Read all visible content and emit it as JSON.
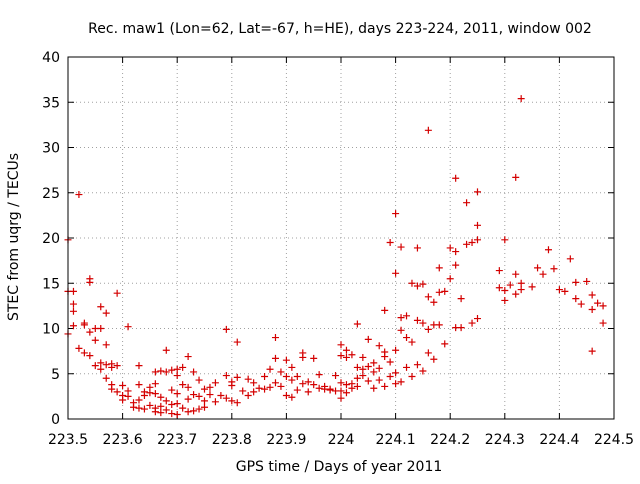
{
  "chart_data": {
    "type": "scatter",
    "title": "Rec. maw1 (Lon=62, Lat=-67, h=HE), days 223-224, 2011, window 002",
    "xlabel": "GPS time / Days of year 2011",
    "ylabel": "STEC from uqrg / TECUs",
    "xlim": [
      223.5,
      224.5
    ],
    "ylim": [
      0,
      40
    ],
    "xticks": [
      223.5,
      223.6,
      223.7,
      223.8,
      223.9,
      224.0,
      224.1,
      224.2,
      224.3,
      224.4,
      224.5
    ],
    "xtick_labels": [
      "223.5",
      "223.6",
      "223.7",
      "223.8",
      "223.9",
      "224",
      "224.1",
      "224.2",
      "224.3",
      "224.4",
      "224.5"
    ],
    "yticks": [
      0,
      5,
      10,
      15,
      20,
      25,
      30,
      35,
      40
    ],
    "ytick_labels": [
      "0",
      "5",
      "10",
      "15",
      "20",
      "25",
      "30",
      "35",
      "40"
    ],
    "grid": true,
    "marker": "+",
    "color": "#d40000",
    "series": [
      {
        "points": [
          [
            223.5,
            14.1
          ],
          [
            223.5,
            9.4
          ],
          [
            223.5,
            19.8
          ],
          [
            223.51,
            14.1
          ],
          [
            223.51,
            12.7
          ],
          [
            223.51,
            11.9
          ],
          [
            223.51,
            10.3
          ],
          [
            223.52,
            7.8
          ],
          [
            223.52,
            24.8
          ],
          [
            223.53,
            10.6
          ],
          [
            223.53,
            10.4
          ],
          [
            223.53,
            7.3
          ],
          [
            223.54,
            15.5
          ],
          [
            223.54,
            15.1
          ],
          [
            223.54,
            9.6
          ],
          [
            223.54,
            7.0
          ],
          [
            223.55,
            10.0
          ],
          [
            223.55,
            8.7
          ],
          [
            223.55,
            5.9
          ],
          [
            223.56,
            12.4
          ],
          [
            223.56,
            10.0
          ],
          [
            223.56,
            6.2
          ],
          [
            223.56,
            5.5
          ],
          [
            223.57,
            11.7
          ],
          [
            223.57,
            8.2
          ],
          [
            223.57,
            6.0
          ],
          [
            223.57,
            4.5
          ],
          [
            223.58,
            6.1
          ],
          [
            223.58,
            5.7
          ],
          [
            223.58,
            3.3
          ],
          [
            223.58,
            3.8
          ],
          [
            223.59,
            13.9
          ],
          [
            223.59,
            5.9
          ],
          [
            223.59,
            3.0
          ],
          [
            223.6,
            3.7
          ],
          [
            223.6,
            2.6
          ],
          [
            223.6,
            2.1
          ],
          [
            223.61,
            10.2
          ],
          [
            223.61,
            3.1
          ],
          [
            223.61,
            2.5
          ],
          [
            223.62,
            1.8
          ],
          [
            223.62,
            1.3
          ],
          [
            223.63,
            5.9
          ],
          [
            223.63,
            3.8
          ],
          [
            223.63,
            2.1
          ],
          [
            223.63,
            1.2
          ],
          [
            223.64,
            3.0
          ],
          [
            223.64,
            2.6
          ],
          [
            223.64,
            1.1
          ],
          [
            223.65,
            3.5
          ],
          [
            223.65,
            2.9
          ],
          [
            223.65,
            1.5
          ],
          [
            223.66,
            5.2
          ],
          [
            223.66,
            3.9
          ],
          [
            223.66,
            2.8
          ],
          [
            223.66,
            1.2
          ],
          [
            223.66,
            0.8
          ],
          [
            223.67,
            5.3
          ],
          [
            223.67,
            2.4
          ],
          [
            223.67,
            1.4
          ],
          [
            223.67,
            0.7
          ],
          [
            223.68,
            7.6
          ],
          [
            223.68,
            5.2
          ],
          [
            223.68,
            2.0
          ],
          [
            223.68,
            1.0
          ],
          [
            223.69,
            5.4
          ],
          [
            223.69,
            3.2
          ],
          [
            223.69,
            1.6
          ],
          [
            223.69,
            0.6
          ],
          [
            223.7,
            5.5
          ],
          [
            223.7,
            4.8
          ],
          [
            223.7,
            2.8
          ],
          [
            223.7,
            1.7
          ],
          [
            223.7,
            0.5
          ],
          [
            223.71,
            5.7
          ],
          [
            223.71,
            3.8
          ],
          [
            223.71,
            1.2
          ],
          [
            223.72,
            6.9
          ],
          [
            223.72,
            3.5
          ],
          [
            223.72,
            2.2
          ],
          [
            223.72,
            0.8
          ],
          [
            223.73,
            5.2
          ],
          [
            223.73,
            2.7
          ],
          [
            223.73,
            0.9
          ],
          [
            223.74,
            4.3
          ],
          [
            223.74,
            2.5
          ],
          [
            223.74,
            1.1
          ],
          [
            223.75,
            3.3
          ],
          [
            223.75,
            2.0
          ],
          [
            223.75,
            1.3
          ],
          [
            223.76,
            3.5
          ],
          [
            223.76,
            2.7
          ],
          [
            223.77,
            4.0
          ],
          [
            223.77,
            1.9
          ],
          [
            223.78,
            2.6
          ],
          [
            223.79,
            9.9
          ],
          [
            223.79,
            4.8
          ],
          [
            223.79,
            2.3
          ],
          [
            223.8,
            4.1
          ],
          [
            223.8,
            3.7
          ],
          [
            223.8,
            2.0
          ],
          [
            223.81,
            8.5
          ],
          [
            223.81,
            4.6
          ],
          [
            223.81,
            1.8
          ],
          [
            223.82,
            3.1
          ],
          [
            223.83,
            4.4
          ],
          [
            223.83,
            2.6
          ],
          [
            223.84,
            4.0
          ],
          [
            223.84,
            3.0
          ],
          [
            223.85,
            3.4
          ],
          [
            223.86,
            4.7
          ],
          [
            223.86,
            3.3
          ],
          [
            223.87,
            5.5
          ],
          [
            223.87,
            3.5
          ],
          [
            223.88,
            9.0
          ],
          [
            223.88,
            6.7
          ],
          [
            223.88,
            4.0
          ],
          [
            223.89,
            5.2
          ],
          [
            223.89,
            3.6
          ],
          [
            223.9,
            6.5
          ],
          [
            223.9,
            4.7
          ],
          [
            223.9,
            2.6
          ],
          [
            223.91,
            5.7
          ],
          [
            223.91,
            4.3
          ],
          [
            223.91,
            2.4
          ],
          [
            223.92,
            4.7
          ],
          [
            223.92,
            3.2
          ],
          [
            223.93,
            7.3
          ],
          [
            223.93,
            6.8
          ],
          [
            223.93,
            3.9
          ],
          [
            223.94,
            4.1
          ],
          [
            223.94,
            3.0
          ],
          [
            223.95,
            6.7
          ],
          [
            223.95,
            3.8
          ],
          [
            223.96,
            4.9
          ],
          [
            223.96,
            3.4
          ],
          [
            223.97,
            3.6
          ],
          [
            223.97,
            3.3
          ],
          [
            223.98,
            3.3
          ],
          [
            223.98,
            3.2
          ],
          [
            223.99,
            3.1
          ],
          [
            223.99,
            4.8
          ],
          [
            224.0,
            8.2
          ],
          [
            224.0,
            7.0
          ],
          [
            224.0,
            4.0
          ],
          [
            224.0,
            3.1
          ],
          [
            224.0,
            2.3
          ],
          [
            224.01,
            7.6
          ],
          [
            224.01,
            6.8
          ],
          [
            224.01,
            3.8
          ],
          [
            224.01,
            2.9
          ],
          [
            224.02,
            7.1
          ],
          [
            224.02,
            3.9
          ],
          [
            224.02,
            3.4
          ],
          [
            224.03,
            10.5
          ],
          [
            224.03,
            5.7
          ],
          [
            224.03,
            4.5
          ],
          [
            224.03,
            3.6
          ],
          [
            224.04,
            6.8
          ],
          [
            224.04,
            5.5
          ],
          [
            224.04,
            4.8
          ],
          [
            224.05,
            8.8
          ],
          [
            224.05,
            5.8
          ],
          [
            224.05,
            4.2
          ],
          [
            224.06,
            6.2
          ],
          [
            224.06,
            5.2
          ],
          [
            224.06,
            3.4
          ],
          [
            224.07,
            8.1
          ],
          [
            224.07,
            5.6
          ],
          [
            224.07,
            4.3
          ],
          [
            224.08,
            12.0
          ],
          [
            224.08,
            7.4
          ],
          [
            224.08,
            6.9
          ],
          [
            224.08,
            3.6
          ],
          [
            224.09,
            19.5
          ],
          [
            224.09,
            6.3
          ],
          [
            224.09,
            4.7
          ],
          [
            224.1,
            22.7
          ],
          [
            224.1,
            16.1
          ],
          [
            224.1,
            7.6
          ],
          [
            224.1,
            5.1
          ],
          [
            224.1,
            3.9
          ],
          [
            224.11,
            19.0
          ],
          [
            224.11,
            11.2
          ],
          [
            224.11,
            9.8
          ],
          [
            224.11,
            4.1
          ],
          [
            224.12,
            11.4
          ],
          [
            224.12,
            9.0
          ],
          [
            224.12,
            5.7
          ],
          [
            224.13,
            15.0
          ],
          [
            224.13,
            8.5
          ],
          [
            224.13,
            4.7
          ],
          [
            224.14,
            18.9
          ],
          [
            224.14,
            14.7
          ],
          [
            224.14,
            10.9
          ],
          [
            224.14,
            6.0
          ],
          [
            224.15,
            14.9
          ],
          [
            224.15,
            10.6
          ],
          [
            224.15,
            5.3
          ],
          [
            224.16,
            31.9
          ],
          [
            224.16,
            13.5
          ],
          [
            224.16,
            9.9
          ],
          [
            224.16,
            7.3
          ],
          [
            224.17,
            12.9
          ],
          [
            224.17,
            10.4
          ],
          [
            224.17,
            6.6
          ],
          [
            224.18,
            16.7
          ],
          [
            224.18,
            10.4
          ],
          [
            224.18,
            14.0
          ],
          [
            224.19,
            8.3
          ],
          [
            224.19,
            14.1
          ],
          [
            224.2,
            18.9
          ],
          [
            224.2,
            15.5
          ],
          [
            224.21,
            10.1
          ],
          [
            224.21,
            26.6
          ],
          [
            224.21,
            17.0
          ],
          [
            224.21,
            18.5
          ],
          [
            224.22,
            13.3
          ],
          [
            224.22,
            10.1
          ],
          [
            224.23,
            23.9
          ],
          [
            224.23,
            19.3
          ],
          [
            224.24,
            10.6
          ],
          [
            224.24,
            19.5
          ],
          [
            224.25,
            25.1
          ],
          [
            224.25,
            21.4
          ],
          [
            224.25,
            11.1
          ],
          [
            224.25,
            19.8
          ],
          [
            224.29,
            16.4
          ],
          [
            224.29,
            14.5
          ],
          [
            224.3,
            14.2
          ],
          [
            224.3,
            13.1
          ],
          [
            224.3,
            19.8
          ],
          [
            224.31,
            14.8
          ],
          [
            224.32,
            26.7
          ],
          [
            224.32,
            13.8
          ],
          [
            224.32,
            16.0
          ],
          [
            224.33,
            15.0
          ],
          [
            224.33,
            14.3
          ],
          [
            224.33,
            35.4
          ],
          [
            224.35,
            14.6
          ],
          [
            224.36,
            16.7
          ],
          [
            224.37,
            16.0
          ],
          [
            224.38,
            18.7
          ],
          [
            224.39,
            16.6
          ],
          [
            224.4,
            14.3
          ],
          [
            224.41,
            14.1
          ],
          [
            224.42,
            17.7
          ],
          [
            224.43,
            15.1
          ],
          [
            224.43,
            13.3
          ],
          [
            224.44,
            12.7
          ],
          [
            224.45,
            15.2
          ],
          [
            224.46,
            12.1
          ],
          [
            224.46,
            13.7
          ],
          [
            224.46,
            7.5
          ],
          [
            224.47,
            12.8
          ],
          [
            224.48,
            12.5
          ],
          [
            224.48,
            10.6
          ]
        ]
      }
    ]
  }
}
